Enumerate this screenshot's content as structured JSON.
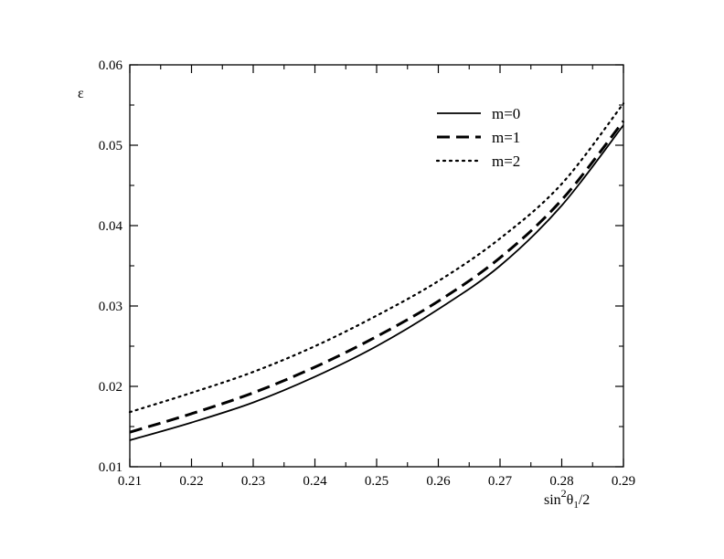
{
  "chart_data": {
    "type": "line",
    "title": "",
    "ylabel": "ε",
    "xlabel": {
      "prefix": "sin",
      "sup": "2",
      "main": "θ",
      "sub": "1",
      "suffix": "/2"
    },
    "xlim": [
      0.21,
      0.29
    ],
    "ylim": [
      0.01,
      0.06
    ],
    "x_ticks": [
      "0.21",
      "0.22",
      "0.23",
      "0.24",
      "0.25",
      "0.26",
      "0.27",
      "0.28",
      "0.29"
    ],
    "y_ticks": [
      "0.01",
      "0.02",
      "0.03",
      "0.04",
      "0.05",
      "0.06"
    ],
    "grid": false,
    "legend_position": "top-right",
    "x": [
      0.21,
      0.22,
      0.23,
      0.24,
      0.25,
      0.26,
      0.27,
      0.28,
      0.29
    ],
    "series": [
      {
        "name": "m=0",
        "style": "solid",
        "values": [
          0.0133,
          0.0155,
          0.018,
          0.0212,
          0.025,
          0.0296,
          0.035,
          0.0425,
          0.0525
        ]
      },
      {
        "name": "m=1",
        "style": "dashed",
        "values": [
          0.0143,
          0.0166,
          0.0192,
          0.0224,
          0.0262,
          0.0306,
          0.036,
          0.0432,
          0.053
        ]
      },
      {
        "name": "m=2",
        "style": "dotted",
        "values": [
          0.0168,
          0.0192,
          0.0218,
          0.025,
          0.0288,
          0.0331,
          0.0384,
          0.0452,
          0.0552
        ]
      }
    ]
  }
}
